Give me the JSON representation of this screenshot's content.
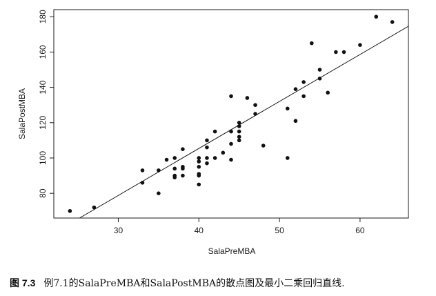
{
  "chart_data": {
    "type": "scatter",
    "xlabel": "SalaPreMBA",
    "ylabel": "SalaPostMBA",
    "xlim": [
      22,
      66
    ],
    "ylim": [
      66,
      184
    ],
    "xticks": [
      30,
      40,
      50,
      60
    ],
    "yticks": [
      80,
      100,
      120,
      140,
      160,
      180
    ],
    "grid": false,
    "points": [
      [
        24,
        70
      ],
      [
        27,
        72
      ],
      [
        33,
        93
      ],
      [
        33,
        86
      ],
      [
        35,
        93
      ],
      [
        35,
        80
      ],
      [
        36,
        99
      ],
      [
        37,
        94
      ],
      [
        37,
        90
      ],
      [
        37,
        89
      ],
      [
        37,
        100
      ],
      [
        38,
        105
      ],
      [
        38,
        95
      ],
      [
        38,
        94
      ],
      [
        38,
        90
      ],
      [
        40,
        100
      ],
      [
        40,
        98
      ],
      [
        40,
        95
      ],
      [
        40,
        91
      ],
      [
        40,
        90
      ],
      [
        40,
        85
      ],
      [
        41,
        110
      ],
      [
        41,
        106
      ],
      [
        41,
        100
      ],
      [
        41,
        97
      ],
      [
        42,
        115
      ],
      [
        42,
        100
      ],
      [
        43,
        103
      ],
      [
        44,
        135
      ],
      [
        44,
        115
      ],
      [
        44,
        108
      ],
      [
        44,
        99
      ],
      [
        45,
        120
      ],
      [
        45,
        118
      ],
      [
        45,
        115
      ],
      [
        45,
        112
      ],
      [
        45,
        110
      ],
      [
        46,
        134
      ],
      [
        47,
        130
      ],
      [
        47,
        125
      ],
      [
        48,
        107
      ],
      [
        51,
        128
      ],
      [
        51,
        100
      ],
      [
        52,
        139
      ],
      [
        52,
        121
      ],
      [
        53,
        143
      ],
      [
        53,
        135
      ],
      [
        54,
        165
      ],
      [
        55,
        150
      ],
      [
        55,
        145
      ],
      [
        56,
        137
      ],
      [
        57,
        160
      ],
      [
        58,
        160
      ],
      [
        60,
        164
      ],
      [
        62,
        180
      ],
      [
        64,
        177
      ]
    ],
    "fit_line": {
      "x": [
        22,
        66
      ],
      "y": [
        57.5,
        174.6
      ]
    }
  },
  "caption": {
    "figure_label": "图 7.3",
    "text": "例7.1的SalaPreMBA和SalaPostMBA的散点图及最小二乘回归直线."
  }
}
